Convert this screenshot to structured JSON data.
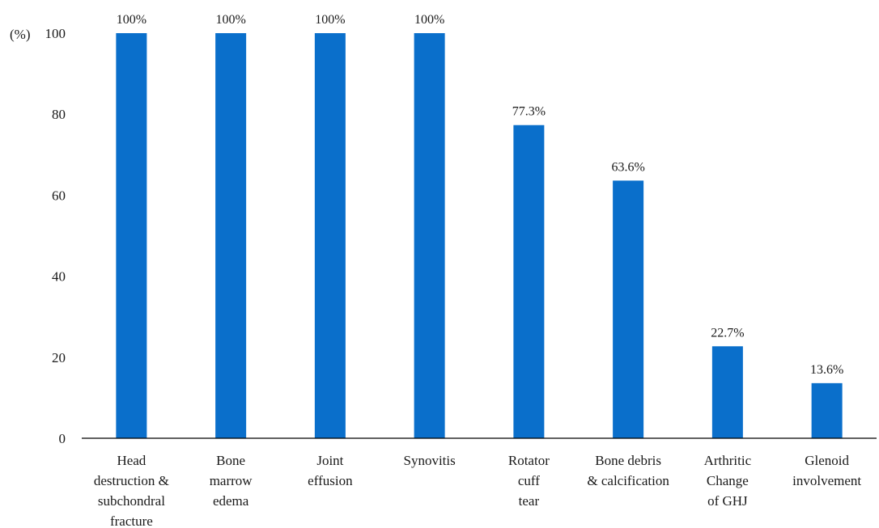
{
  "chart_data": {
    "type": "bar",
    "title": "",
    "xlabel": "",
    "ylabel": "(%)",
    "ylim": [
      0,
      100
    ],
    "yticks": [
      0,
      20,
      40,
      60,
      80,
      100
    ],
    "grid": false,
    "bar_color": "#0a6fcb",
    "categories": [
      [
        "Head",
        "destruction &",
        "subchondral",
        "fracture"
      ],
      [
        "Bone",
        "marrow",
        "edema"
      ],
      [
        "Joint",
        "effusion"
      ],
      [
        "Synovitis"
      ],
      [
        "Rotator",
        "cuff",
        "tear"
      ],
      [
        "Bone debris",
        "& calcification"
      ],
      [
        "Arthritic",
        "Change",
        "of GHJ"
      ],
      [
        "Glenoid",
        "involvement"
      ]
    ],
    "values": [
      100,
      100,
      100,
      100,
      77.3,
      63.6,
      22.7,
      13.6
    ],
    "data_labels": [
      "100%",
      "100%",
      "100%",
      "100%",
      "77.3%",
      "63.6%",
      "22.7%",
      "13.6%"
    ]
  }
}
